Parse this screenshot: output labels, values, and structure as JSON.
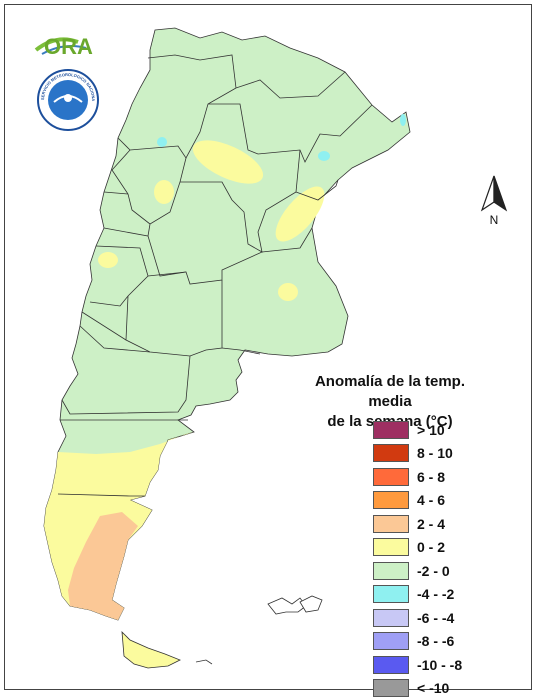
{
  "logo": {
    "text": "ORA"
  },
  "seal": {
    "text": "SERVICIO METEOROLOGICO NACIONAL · ARGENTINA"
  },
  "north_arrow": {
    "label": "N"
  },
  "legend": {
    "title_line1": "Anomalía de la temp. media",
    "title_line2": "de la semana (°C)",
    "items": [
      {
        "label": "> 10",
        "color": "#9e2f62"
      },
      {
        "label": "8 - 10",
        "color": "#d13a10"
      },
      {
        "label": "6 - 8",
        "color": "#ff6a3a"
      },
      {
        "label": "4 - 6",
        "color": "#ff9a3e"
      },
      {
        "label": "2 - 4",
        "color": "#fbc896"
      },
      {
        "label": "0 - 2",
        "color": "#fbfb9e"
      },
      {
        "label": "-2 - 0",
        "color": "#cdf0c6"
      },
      {
        "label": "-4 - -2",
        "color": "#8ff0f0"
      },
      {
        "label": "-6 - -4",
        "color": "#c8c8f5"
      },
      {
        "label": "-8 - -6",
        "color": "#9f9ff5"
      },
      {
        "label": "-10 - -8",
        "color": "#5a5af0"
      },
      {
        "label": "< -10",
        "color": "#999999"
      }
    ]
  }
}
